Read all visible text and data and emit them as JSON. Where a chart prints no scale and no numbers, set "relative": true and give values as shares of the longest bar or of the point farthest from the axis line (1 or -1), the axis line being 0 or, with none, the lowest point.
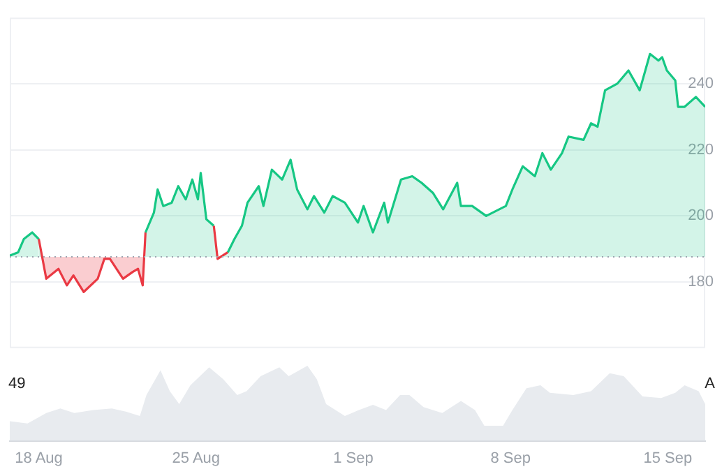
{
  "chart_data": [
    {
      "type": "area",
      "x": [
        "--08-16T17:00",
        "--08-17T02:00",
        "--08-17T08:00",
        "--08-17T17:00",
        "--08-18T00:00",
        "--08-18T04:00",
        "--08-18T08:00",
        "--08-18T21:00",
        "--08-19T06:00",
        "--08-19T13:00",
        "--08-20T00:00",
        "--08-20T15:00",
        "--08-20T22:00",
        "--08-21T04:00",
        "--08-21T18:00",
        "--08-22T04:00",
        "--08-22T10:00",
        "--08-22T15:00",
        "--08-22T18:00",
        "--08-23T03:00",
        "--08-23T07:00",
        "--08-23T13:00",
        "--08-23T22:00",
        "--08-24T05:00",
        "--08-24T13:00",
        "--08-24T20:00",
        "--08-25T02:00",
        "--08-25T05:00",
        "--08-25T11:00",
        "--08-25T19:00",
        "--08-25T23:00",
        "--08-26T10:00",
        "--08-26T17:00",
        "--08-27T01:00",
        "--08-27T07:00",
        "--08-27T19:00",
        "--08-28T00:00",
        "--08-28T09:00",
        "--08-28T20:00",
        "--08-29T05:00",
        "--08-29T12:00",
        "--08-29T23:00",
        "--08-30T06:00",
        "--08-30T17:00",
        "--08-31T02:00",
        "--08-31T15:00",
        "--09-01T05:00",
        "--09-01T11:00",
        "--09-01T21:00",
        "--09-02T09:00",
        "--09-02T13:00",
        "--09-03T03:00",
        "--09-03T15:00",
        "--09-04T01:00",
        "--09-04T13:00",
        "--09-05T00:00",
        "--09-05T15:00",
        "--09-05T19:00",
        "--09-06T07:00",
        "--09-06T22:00",
        "--09-07T19:00",
        "--09-08T02:00",
        "--09-08T13:00",
        "--09-09T02:00",
        "--09-09T10:00",
        "--09-09T19:00",
        "--09-10T07:00",
        "--09-10T14:00",
        "--09-11T06:00",
        "--09-11T14:00",
        "--09-11T21:00",
        "--09-12T05:00",
        "--09-12T18:00",
        "--09-13T06:00",
        "--09-13T18:00",
        "--09-14T05:00",
        "--09-14T14:00",
        "--09-14T18:00",
        "--09-14T23:00",
        "--09-15T08:00",
        "--09-15T11:00",
        "--09-15T18:00",
        "--09-16T06:00",
        "--09-16T16:00"
      ],
      "series": [
        {
          "color": "#16c784",
          "colors": [
            "#16c784",
            "#16c784",
            "#16c784",
            "#16c784",
            "#16c784",
            "#ea3943",
            "#ea3943",
            "#ea3943",
            "#ea3943",
            "#ea3943",
            "#ea3943",
            "#ea3943",
            "#ea3943",
            "#ea3943",
            "#ea3943",
            "#ea3943",
            "#ea3943",
            "#ea3943",
            "#16c784",
            "#16c784",
            "#16c784",
            "#16c784",
            "#16c784",
            "#16c784",
            "#16c784",
            "#16c784",
            "#16c784",
            "#16c784",
            "#16c784",
            "#16c784",
            "#ea3943",
            "#16c784",
            "#16c784",
            "#16c784",
            "#16c784",
            "#16c784",
            "#16c784",
            "#16c784",
            "#16c784",
            "#16c784",
            "#16c784",
            "#16c784",
            "#16c784",
            "#16c784",
            "#16c784",
            "#16c784",
            "#16c784",
            "#16c784",
            "#16c784",
            "#16c784",
            "#16c784",
            "#16c784",
            "#16c784",
            "#16c784",
            "#16c784",
            "#16c784",
            "#16c784",
            "#16c784",
            "#16c784",
            "#16c784",
            "#16c784",
            "#16c784",
            "#16c784",
            "#16c784",
            "#16c784",
            "#16c784",
            "#16c784",
            "#16c784",
            "#16c784",
            "#16c784",
            "#16c784",
            "#16c784",
            "#16c784",
            "#16c784",
            "#16c784",
            "#16c784",
            "#16c784",
            "#16c784",
            "#16c784",
            "#16c784",
            "#16c784",
            "#16c784",
            "#16c784",
            "#16c784"
          ],
          "values": [
            188,
            189,
            193,
            195,
            193,
            187,
            181,
            184,
            179,
            182,
            177,
            181,
            187,
            187,
            181,
            183,
            184,
            179,
            195,
            201,
            208,
            203,
            204,
            209,
            205,
            211,
            205,
            213,
            199,
            197,
            187,
            189,
            193,
            197,
            204,
            209,
            203,
            214,
            211,
            217,
            208,
            202,
            206,
            201,
            206,
            204,
            198,
            203,
            195,
            204,
            198,
            211,
            212,
            210,
            207,
            202,
            210,
            203,
            203,
            200,
            203,
            208,
            215,
            212,
            219,
            214,
            219,
            224,
            223,
            228,
            227,
            238,
            240,
            244,
            238,
            249,
            247,
            248,
            244,
            241,
            233,
            233,
            236,
            233
          ]
        }
      ],
      "xlim": [
        "--08-16T17:00",
        "--09-16T16:00"
      ],
      "ylim": [
        160,
        260
      ],
      "yticks": [
        180,
        200,
        220,
        240
      ],
      "grid": "y",
      "legend": false,
      "tick_labels": "y",
      "ref_lines": [
        {
          "axis": "y",
          "value": 187.6,
          "color": "#9ca3af",
          "line_style": "dotted"
        }
      ]
    },
    {
      "type": "area",
      "relative": true,
      "annotations": [
        "49",
        "A"
      ],
      "x": [
        "--08-16T17:00",
        "--08-17T12:00",
        "--08-18T08:00",
        "--08-18T23:00",
        "--08-19T14:00",
        "--08-20T10:00",
        "--08-21T06:00",
        "--08-21T21:00",
        "--08-22T12:00",
        "--08-22T19:00",
        "--08-23T10:00",
        "--08-23T20:00",
        "--08-24T06:00",
        "--08-24T18:00",
        "--08-25T14:00",
        "--08-26T05:00",
        "--08-26T20:00",
        "--08-27T06:00",
        "--08-27T21:00",
        "--08-28T17:00",
        "--08-29T03:00",
        "--08-29T23:00",
        "--08-30T09:00",
        "--08-30T19:00",
        "--08-31T15:00",
        "--09-01T06:00",
        "--09-01T21:00",
        "--09-02T11:00",
        "--09-03T02:00",
        "--09-03T12:00",
        "--09-04T03:00",
        "--09-04T23:00",
        "--09-05T19:00",
        "--09-06T10:00",
        "--09-06T20:00",
        "--09-07T16:00",
        "--09-08T02:00",
        "--09-08T17:00",
        "--09-09T08:00",
        "--09-09T18:00",
        "--09-10T19:00",
        "--09-11T14:00",
        "--09-12T10:00",
        "--09-13T01:00",
        "--09-13T21:00",
        "--09-14T17:00",
        "--09-15T08:00",
        "--09-15T18:00",
        "--09-16T09:00",
        "--09-16T16:00"
      ],
      "series": [
        {
          "color": "#e8ebef",
          "values": [
            0.26,
            0.23,
            0.37,
            0.43,
            0.37,
            0.41,
            0.43,
            0.39,
            0.33,
            0.61,
            0.94,
            0.66,
            0.49,
            0.74,
            0.98,
            0.82,
            0.61,
            0.66,
            0.86,
            0.98,
            0.86,
            1,
            0.82,
            0.49,
            0.33,
            0.41,
            0.48,
            0.41,
            0.61,
            0.61,
            0.45,
            0.37,
            0.53,
            0.41,
            0.2,
            0.2,
            0.41,
            0.7,
            0.74,
            0.64,
            0.61,
            0.66,
            0.9,
            0.86,
            0.59,
            0.57,
            0.64,
            0.74,
            0.66,
            0.49
          ]
        }
      ],
      "xlim": [
        "--08-16T17:00",
        "--09-16T16:00"
      ],
      "xticks": [
        {
          "value": "--08-18",
          "label": "18 Aug"
        },
        {
          "value": "--08-25",
          "label": "25 Aug"
        },
        {
          "value": "--09-01",
          "label": "1 Sep"
        },
        {
          "value": "--09-08",
          "label": "8 Sep"
        },
        {
          "value": "--09-15",
          "label": "15 Sep"
        }
      ],
      "grid": false,
      "legend": false,
      "tick_labels": "x"
    }
  ]
}
